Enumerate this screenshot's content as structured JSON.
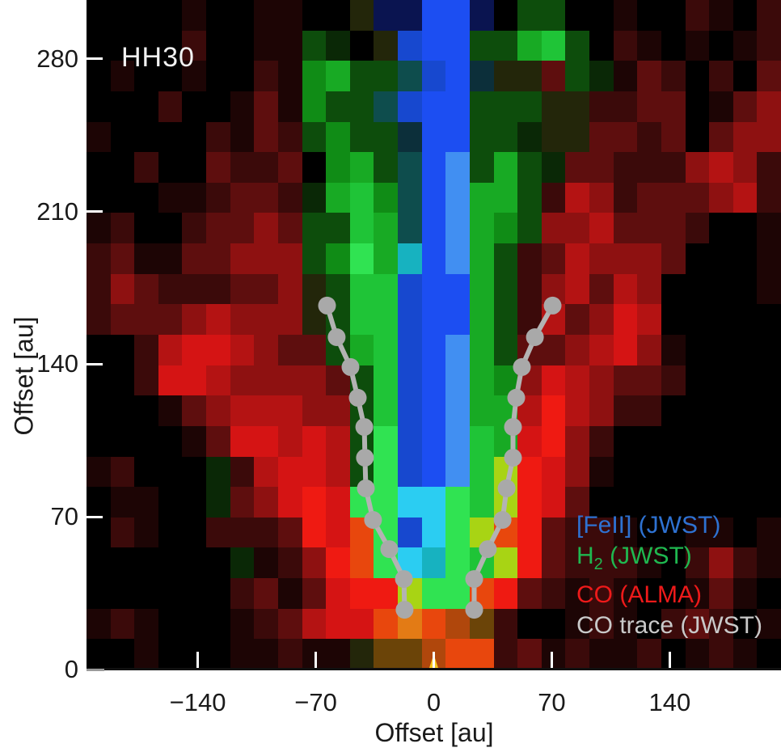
{
  "figure": {
    "object_label": "HH30"
  },
  "axes": {
    "xlabel": "Offset [au]",
    "ylabel": "Offset [au]",
    "x_ticks_au": [
      -140,
      -70,
      0,
      70,
      140
    ],
    "x_tick_labels": [
      "−140",
      "−70",
      "0",
      "70",
      "140"
    ],
    "y_ticks_au": [
      0,
      70,
      140,
      210,
      280
    ],
    "y_tick_labels": [
      "0",
      "70",
      "140",
      "210",
      "280"
    ],
    "tick_color": "#ffffff",
    "label_color": "#1a1a1a"
  },
  "legend": {
    "entries": [
      {
        "prefix": "[FeII] (JWST)",
        "sub": "",
        "suffix": "",
        "color": "#2e72d2"
      },
      {
        "prefix": "H",
        "sub": "2",
        "suffix": " (JWST)",
        "color": "#1fb850"
      },
      {
        "prefix": "CO (ALMA)",
        "sub": "",
        "suffix": "",
        "color": "#ee1a1a"
      },
      {
        "prefix": "CO trace (JWST)",
        "sub": "",
        "suffix": "",
        "color": "#c9c9c9"
      }
    ]
  },
  "chart_data": {
    "type": "heatmap",
    "title": "HH30",
    "description": "RGB composite of the HH30 disk-jet system: [FeII] JWST (blue) jet core, H2 JWST (green) conical outflow, CO ALMA (red) wide outflow, gray CO trace points, gold star at the source position.",
    "xlabel": "Offset [au]",
    "ylabel": "Offset [au]",
    "xlim_au": [
      -206,
      206
    ],
    "ylim_au": [
      0,
      307
    ],
    "x_ticks_au": [
      -140,
      -70,
      0,
      70,
      140
    ],
    "y_ticks_au": [
      0,
      70,
      140,
      210,
      280
    ],
    "cell_size_au": 14,
    "grid_cols": 29,
    "grid_rows": 22,
    "palette": {
      "K": "#000000",
      "a": "#1d0505",
      "b": "#3b0a0a",
      "c": "#5e0e0e",
      "d": "#8e1111",
      "e": "#b41313",
      "f": "#d51414",
      "g": "#ef1a12",
      "h": "#e8470d",
      "i": "#e37b15",
      "j": "#6b4408",
      "n": "#b0470c",
      "F": "#23260a",
      "p": "#0a2806",
      "q": "#0d4d0c",
      "r": "#108c16",
      "s": "#18aa24",
      "t": "#1fc437",
      "u": "#30e352",
      "v": "#a8d414",
      "x": "#0e4d4d",
      "y": "#17b2c0",
      "z": "#2bcdf2",
      "A": "#0a1450",
      "B": "#1748cf",
      "C": "#1c4ef2",
      "D": "#418ff2",
      "H": "#0c2f3a"
    },
    "rgb_grid_rows_top_to_bottom": [
      "KKKKaKKaaKKFAACCAKqqKKaKKbaKb",
      "KKKKbKKaaqpKFBCCqqstqKbaKaKab",
      "KaKKaKKbarsqqxBCHFFcqpacbKbKc",
      "KKKbKKacarqqxBCCqqqFFbbccKacd",
      "aKKKKbacbqrqqHCCqqpFFccbcKcdd",
      "KKbKKcbbcKrsqxCDqsqpccbbbdedb",
      "KKKaabccbpstrxCDssqbedbcccdeb",
      "abKKbccdcqqtsxCDsrqddecccbKKa",
      "bcaaccdddqrusyCDsqbcedddcKKKa",
      "bdcbbbccdFqttBCCsqbdecedKKKKa",
      "bcccdedddFqttBCCsqbecdfeKKKKK",
      "KKbeffedccqstBCDsqccdefdaKKKK",
      "KKbffeddddcqtBCDsrdfedccbKKKK",
      "KKKacdeeeddqtBCDssegedbbKKKKK",
      "KKKKacffefequBCDtsfgdbKKKKKKK",
      "abKKKpbeffequBCDtvgfdaKKKKKKK",
      "KaaKKpcdfgfuuzzutvgfcKKKKKKKK",
      "KbaKKbbbcgfhuBzuvhgcbbaKKaaKa",
      "KKKKKKpabdghuzyutvgcbbbaKbdba",
      "KKKKKKbcacfggvuuhgcbabaKKacaK",
      "abaKKKabceffhihnjbKKabaKbcbKa",
      "KKaKKKaabaaFjjnhhbcabaabKabaK"
    ],
    "co_trace_jwst": {
      "line_color": "#b3b3b3",
      "marker_color": "#a9a9a9",
      "left_branch_au": [
        [
          -63.3,
          166.9
        ],
        [
          -57.6,
          152.4
        ],
        [
          -49.4,
          138.7
        ],
        [
          -45.1,
          124.6
        ],
        [
          -41.2,
          111.2
        ],
        [
          -40.8,
          97.1
        ],
        [
          -40.3,
          83.1
        ],
        [
          -36.0,
          68.6
        ],
        [
          -26.4,
          55.2
        ],
        [
          -17.7,
          41.5
        ],
        [
          -17.3,
          27.4
        ]
      ],
      "right_branch_au": [
        [
          70.5,
          166.9
        ],
        [
          60.0,
          152.4
        ],
        [
          52.3,
          138.7
        ],
        [
          48.9,
          124.6
        ],
        [
          47.0,
          111.2
        ],
        [
          47.0,
          97.1
        ],
        [
          43.2,
          83.1
        ],
        [
          40.8,
          68.6
        ],
        [
          32.1,
          55.2
        ],
        [
          24.0,
          41.5
        ],
        [
          24.0,
          27.4
        ]
      ]
    },
    "star_marker_au": {
      "x": 0,
      "y": 0,
      "color": "#f6c51c",
      "glyph": "star"
    },
    "legend_position": "lower right",
    "grid_lines": false
  }
}
